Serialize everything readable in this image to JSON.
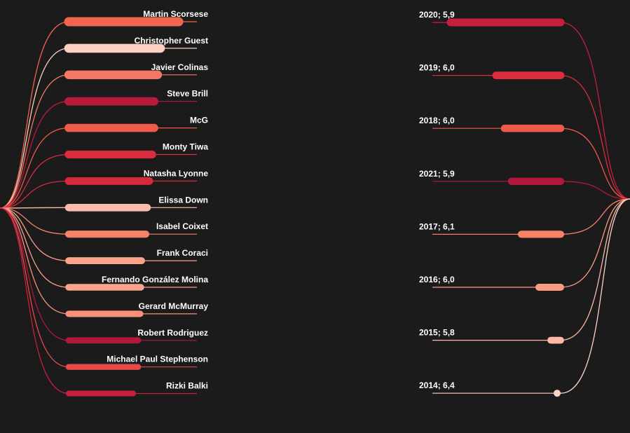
{
  "chart_data": {
    "type": "bar",
    "left_panel": {
      "categories": [
        "Martin Scorsese",
        "Christopher Guest",
        "Javier Colinas",
        "Steve Brill",
        "McG",
        "Monty Tiwa",
        "Natasha Lyonne",
        "Elissa Down",
        "Isabel Coixet",
        "Frank Coraci",
        "Fernando González Molina",
        "Gerard McMurray",
        "Robert Rodriguez",
        "Michael Paul Stephenson",
        "Rizki Balki"
      ],
      "values": [
        157,
        131,
        127,
        122,
        122,
        119,
        115,
        112,
        110,
        104,
        103,
        102,
        99,
        99,
        92
      ],
      "colors": [
        "#ef6550",
        "#fdd0c2",
        "#f47864",
        "#b81a3c",
        "#ef5a4a",
        "#d92c3c",
        "#d62a3c",
        "#fcbcac",
        "#f6826a",
        "#fca28a",
        "#fca38b",
        "#f9917a",
        "#b2183c",
        "#e74848",
        "#c81e3c"
      ]
    },
    "right_panel": {
      "labels": [
        {
          "year": "2020",
          "score": "5,9"
        },
        {
          "year": "2019",
          "score": "6,0"
        },
        {
          "year": "2018",
          "score": "6,0"
        },
        {
          "year": "2021",
          "score": "5,9"
        },
        {
          "year": "2017",
          "score": "6,1"
        },
        {
          "year": "2016",
          "score": "6,0"
        },
        {
          "year": "2015",
          "score": "5,8"
        },
        {
          "year": "2014",
          "score": "6,4"
        }
      ],
      "values": [
        157,
        92,
        80,
        70,
        56,
        31,
        14,
        8
      ],
      "colors": [
        "#c81e3c",
        "#dc2c3e",
        "#ee5a4a",
        "#b2183c",
        "#f6826a",
        "#fb9c82",
        "#fcb8a4",
        "#fdd2c4"
      ]
    },
    "value_max": 157
  }
}
